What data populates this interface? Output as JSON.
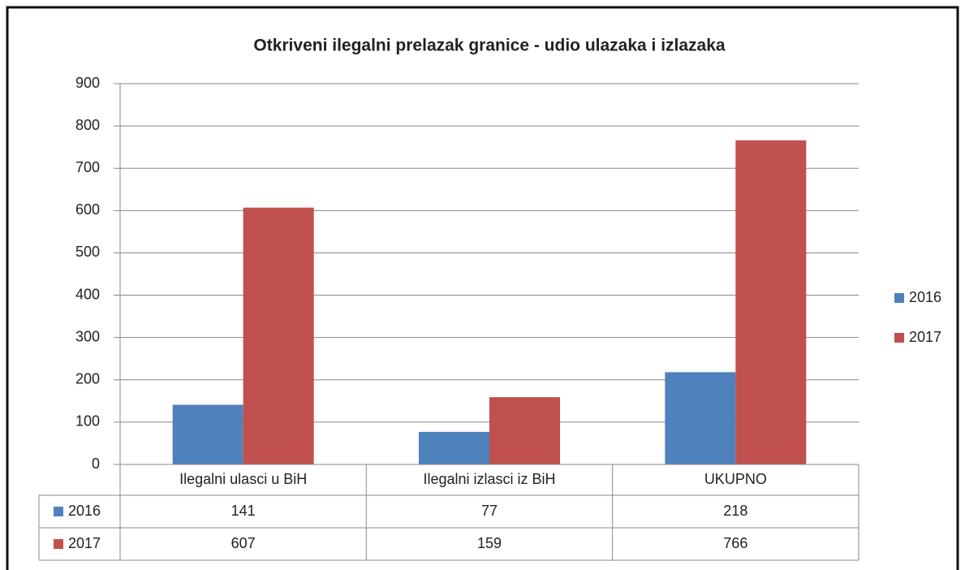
{
  "chart_data": {
    "type": "bar",
    "title": "Otkriveni ilegalni prelazak granice - udio ulazaka i izlazaka",
    "categories": [
      "Ilegalni ulasci u BiH",
      "Ilegalni izlasci iz BiH",
      "UKUPNO"
    ],
    "series": [
      {
        "name": "2016",
        "color": "#4f81bd",
        "values": [
          141,
          77,
          218
        ]
      },
      {
        "name": "2017",
        "color": "#c0504d",
        "values": [
          607,
          159,
          766
        ]
      }
    ],
    "ylim": [
      0,
      900
    ],
    "yticks": [
      0,
      100,
      200,
      300,
      400,
      500,
      600,
      700,
      800,
      900
    ],
    "grid": true,
    "legend": "right",
    "data_table": true
  }
}
